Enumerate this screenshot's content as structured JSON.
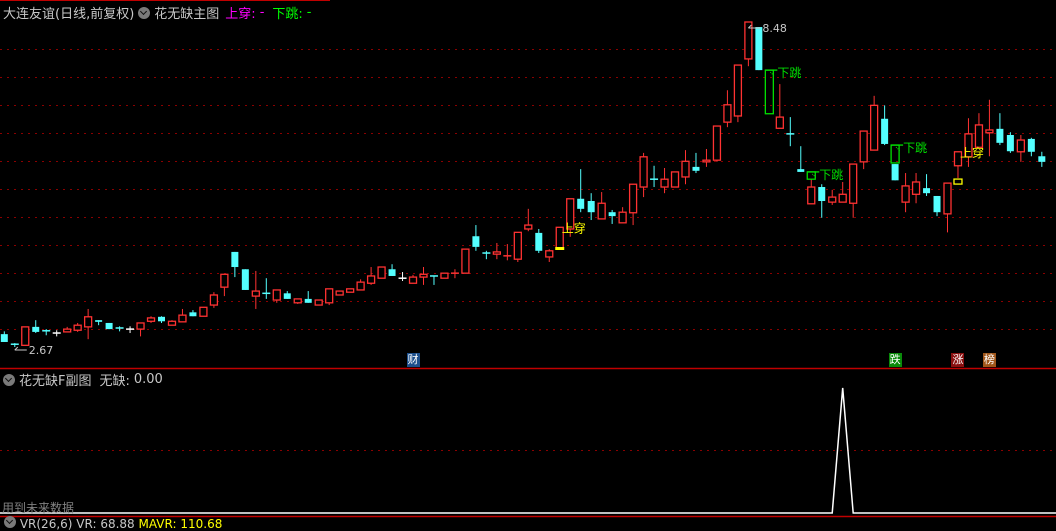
{
  "header": {
    "stock": "大连友谊(日线,前复权)",
    "indicator": "花无缺主图",
    "up_label": "上穿:",
    "up_value": "-",
    "down_label": "下跳:",
    "down_value": "-"
  },
  "sub_header": {
    "indicator": "花无缺F副图",
    "label": "无缺:",
    "value": "0.00"
  },
  "footer_note": "用到未来数据",
  "vr_line": {
    "name": "VR(26,6)",
    "vr": "VR: 68.88",
    "mavr": "MAVR: 110.68"
  },
  "colors": {
    "up": "#ff3232",
    "down": "#54ffff",
    "flat": "#ffffff",
    "gap": "#00e000",
    "cross_signal": "#ffff00",
    "separator": "#c00000",
    "grid": "#8b0000"
  },
  "badges": [
    {
      "text": "财",
      "candle": 39,
      "color": "#1c4f8c"
    },
    {
      "text": "跌",
      "candle": 85,
      "color": "#0a8a0a"
    },
    {
      "text": "涨",
      "candle": 91,
      "color": "#8a1010"
    },
    {
      "text": "榜",
      "candle": 94,
      "color": "#a0561a"
    }
  ],
  "chart_data": [
    {
      "type": "candlestick",
      "title": "",
      "ylim": [
        2.61,
        8.48
      ],
      "high_label": {
        "text": "8.48",
        "candle": 71
      },
      "low_label": {
        "text": "2.67",
        "candle": 1
      },
      "candles_ohlc": [
        [
          2.9,
          2.95,
          2.76,
          2.76
        ],
        [
          2.72,
          2.74,
          2.67,
          2.72,
          "down"
        ],
        [
          2.7,
          3.03,
          2.7,
          3.03
        ],
        [
          3.03,
          3.15,
          2.92,
          2.94
        ],
        [
          2.96,
          2.99,
          2.88,
          2.96,
          "down"
        ],
        [
          2.92,
          2.97,
          2.86,
          2.92,
          "flat"
        ],
        [
          2.94,
          3.03,
          2.94,
          2.99
        ],
        [
          2.97,
          3.1,
          2.94,
          3.06
        ],
        [
          3.03,
          3.35,
          2.81,
          3.21
        ],
        [
          3.15,
          3.15,
          3.06,
          3.12
        ],
        [
          3.1,
          3.1,
          2.99,
          2.99
        ],
        [
          3.01,
          3.04,
          2.95,
          3.01,
          "down"
        ],
        [
          2.99,
          3.04,
          2.92,
          2.99,
          "flat"
        ],
        [
          2.99,
          3.1,
          2.86,
          3.1
        ],
        [
          3.13,
          3.22,
          3.1,
          3.19
        ],
        [
          3.21,
          3.22,
          3.1,
          3.13
        ],
        [
          3.06,
          3.15,
          3.06,
          3.13
        ],
        [
          3.12,
          3.35,
          3.12,
          3.24
        ],
        [
          3.29,
          3.33,
          3.22,
          3.22
        ],
        [
          3.22,
          3.38,
          3.22,
          3.38
        ],
        [
          3.42,
          3.65,
          3.37,
          3.6
        ],
        [
          3.74,
          3.97,
          3.58,
          3.97
        ],
        [
          4.37,
          4.37,
          3.92,
          4.1
        ],
        [
          4.06,
          4.06,
          3.69,
          3.69
        ],
        [
          3.58,
          4.03,
          3.35,
          3.67
        ],
        [
          3.63,
          3.9,
          3.53,
          3.63,
          "down"
        ],
        [
          3.51,
          3.69,
          3.46,
          3.69
        ],
        [
          3.63,
          3.67,
          3.53,
          3.53
        ],
        [
          3.46,
          3.53,
          3.44,
          3.53
        ],
        [
          3.53,
          3.67,
          3.46,
          3.46
        ],
        [
          3.42,
          3.51,
          3.42,
          3.51
        ],
        [
          3.46,
          3.71,
          3.42,
          3.71
        ],
        [
          3.6,
          3.67,
          3.6,
          3.67
        ],
        [
          3.65,
          3.71,
          3.65,
          3.71
        ],
        [
          3.69,
          3.88,
          3.69,
          3.83
        ],
        [
          3.81,
          4.1,
          3.78,
          3.94
        ],
        [
          3.9,
          4.1,
          3.9,
          4.1
        ],
        [
          4.06,
          4.15,
          3.94,
          3.94
        ],
        [
          3.9,
          4.01,
          3.85,
          3.9,
          "flat"
        ],
        [
          3.81,
          3.96,
          3.81,
          3.92
        ],
        [
          3.92,
          4.1,
          3.78,
          3.97
        ],
        [
          3.94,
          3.94,
          3.78,
          3.94,
          "down"
        ],
        [
          3.9,
          3.99,
          3.9,
          3.99
        ],
        [
          3.99,
          4.06,
          3.9,
          3.99,
          "up"
        ],
        [
          3.99,
          4.42,
          3.99,
          4.42
        ],
        [
          4.65,
          4.85,
          4.39,
          4.46
        ],
        [
          4.35,
          4.39,
          4.24,
          4.35,
          "down"
        ],
        [
          4.33,
          4.53,
          4.24,
          4.37
        ],
        [
          4.3,
          4.51,
          4.22,
          4.3,
          "up"
        ],
        [
          4.24,
          4.72,
          4.19,
          4.72
        ],
        [
          4.78,
          5.14,
          4.74,
          4.85
        ],
        [
          4.71,
          4.78,
          4.35,
          4.39
        ],
        [
          4.28,
          4.42,
          4.19,
          4.39
        ],
        [
          4.44,
          4.81,
          4.44,
          4.81
        ],
        [
          4.78,
          5.32,
          4.64,
          5.32
        ],
        [
          5.32,
          5.85,
          5.08,
          5.14
        ],
        [
          5.28,
          5.42,
          4.94,
          5.08
        ],
        [
          4.96,
          5.44,
          4.96,
          5.24
        ],
        [
          5.08,
          5.12,
          4.87,
          5.01
        ],
        [
          4.89,
          5.17,
          4.89,
          5.08
        ],
        [
          5.07,
          5.58,
          4.85,
          5.58
        ],
        [
          5.53,
          6.14,
          5.35,
          6.07
        ],
        [
          5.67,
          5.91,
          5.53,
          5.67,
          "down"
        ],
        [
          5.53,
          5.87,
          5.42,
          5.67
        ],
        [
          5.53,
          5.8,
          5.53,
          5.8
        ],
        [
          5.71,
          6.19,
          5.58,
          5.99
        ],
        [
          5.89,
          6.14,
          5.78,
          5.82
        ],
        [
          5.98,
          6.21,
          5.89,
          6.01
        ],
        [
          6.01,
          6.62,
          5.98,
          6.62
        ],
        [
          6.69,
          7.26,
          6.6,
          7.0
        ],
        [
          6.8,
          7.71,
          6.69,
          7.71
        ],
        [
          7.82,
          8.48,
          7.69,
          8.48
        ],
        [
          8.39,
          8.39,
          7.62,
          7.62
        ],
        null,
        [
          6.58,
          7.37,
          6.58,
          6.78
        ],
        [
          6.48,
          6.78,
          6.26,
          6.48,
          "down"
        ],
        [
          5.85,
          6.26,
          5.8,
          5.8
        ],
        [
          5.23,
          5.67,
          5.23,
          5.53
        ],
        [
          5.53,
          5.58,
          4.98,
          5.28
        ],
        [
          5.26,
          5.48,
          5.21,
          5.35
        ],
        [
          5.26,
          5.62,
          5.26,
          5.4
        ],
        [
          5.24,
          5.94,
          4.98,
          5.94
        ],
        [
          5.98,
          6.53,
          5.85,
          6.53
        ],
        [
          6.19,
          7.16,
          6.19,
          6.99
        ],
        [
          6.75,
          6.99,
          6.28,
          6.3
        ],
        [
          5.94,
          5.94,
          5.65,
          5.65
        ],
        [
          5.26,
          5.78,
          5.08,
          5.55
        ],
        [
          5.4,
          5.78,
          5.24,
          5.62
        ],
        [
          5.51,
          5.76,
          5.37,
          5.42
        ],
        [
          5.37,
          5.37,
          5.01,
          5.08
        ],
        [
          5.05,
          5.6,
          4.72,
          5.6
        ],
        [
          5.91,
          6.16,
          5.69,
          6.16
        ],
        [
          6.07,
          6.76,
          5.89,
          6.48
        ],
        [
          6.24,
          6.85,
          6.24,
          6.64
        ],
        [
          6.5,
          7.09,
          6.08,
          6.55
        ],
        [
          6.57,
          6.85,
          6.28,
          6.32
        ],
        [
          6.46,
          6.51,
          6.14,
          6.17
        ],
        [
          6.16,
          6.46,
          5.98,
          6.37
        ],
        [
          6.39,
          6.41,
          6.08,
          6.16
        ],
        [
          6.08,
          6.16,
          5.89,
          5.98
        ]
      ],
      "gap_down_signals": [
        {
          "candle": 73,
          "range": [
            7.62,
            6.84
          ],
          "text": "下跳"
        },
        {
          "candle": 77,
          "range": [
            5.8,
            5.67
          ],
          "text": "下跳"
        },
        {
          "candle": 85,
          "range": [
            6.28,
            5.96
          ],
          "text": "下跳"
        }
      ],
      "cross_up_signals": [
        {
          "candle": 53,
          "level": 4.44,
          "text": "上穿",
          "marker": "filled"
        },
        {
          "candle": 91,
          "level": 5.6,
          "text": "上穿",
          "marker": "hollow"
        }
      ]
    },
    {
      "type": "line",
      "series_label": "无缺",
      "ylim": [
        0,
        1
      ],
      "values_nonzero": {
        "80": 1
      },
      "count": 100
    }
  ]
}
